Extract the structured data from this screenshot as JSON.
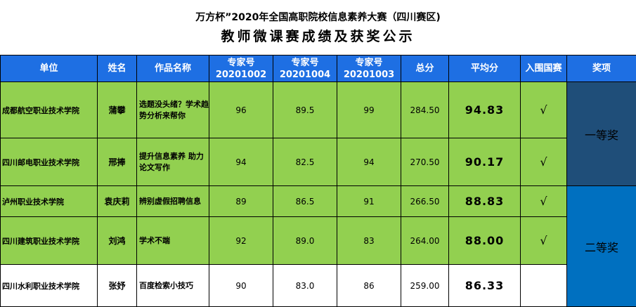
{
  "title_line1": "万方杯”2020年全国高职院校信息素养大赛（四川赛区)",
  "title_line2": "教师微课赛成绩及获奖公示",
  "headers": {
    "unit": "单位",
    "name": "姓名",
    "work": "作品名称",
    "e1_label": "专家号",
    "e1_id": "20201002",
    "e2_label": "专家号",
    "e2_id": "20201004",
    "e3_label": "专家号",
    "e3_id": "20201003",
    "total": "总分",
    "avg": "平均分",
    "national": "入围国赛",
    "award": "奖项"
  },
  "rows": [
    {
      "unit": "成都航空职业技术学院",
      "name": "蒲攀",
      "work": "选题没头绪？学术趋势分析来帮你",
      "e1": "96",
      "e2": "89.5",
      "e3": "99",
      "total": "284.50",
      "avg": "94.83",
      "national": "√"
    },
    {
      "unit": "四川邮电职业技术学院",
      "name": "邢捧",
      "work": "提升信息素养 助力论文写作",
      "e1": "94",
      "e2": "82.5",
      "e3": "94",
      "total": "270.50",
      "avg": "90.17",
      "national": "√"
    },
    {
      "unit": "泸州职业技术学院",
      "name": "袁庆莉",
      "work": "辨别虚假招聘信息",
      "e1": "89",
      "e2": "86.5",
      "e3": "91",
      "total": "266.50",
      "avg": "88.83",
      "national": "√"
    },
    {
      "unit": "四川建筑职业技术学院",
      "name": "刘鸿",
      "work": "学术不端",
      "e1": "92",
      "e2": "89.0",
      "e3": "83",
      "total": "264.00",
      "avg": "88.00",
      "national": "√"
    },
    {
      "unit": "四川水利职业技术学院",
      "name": "张妤",
      "work": "百度检索小技巧",
      "e1": "90",
      "e2": "83.0",
      "e3": "86",
      "total": "259.00",
      "avg": "86.33",
      "national": ""
    }
  ],
  "awards": {
    "first": "一等奖",
    "second": "二等奖"
  },
  "colors": {
    "header": "#1e6fe3",
    "qualified_row": "#92d050",
    "first_prize": "#1f4e79",
    "second_prize": "#0070c0"
  }
}
